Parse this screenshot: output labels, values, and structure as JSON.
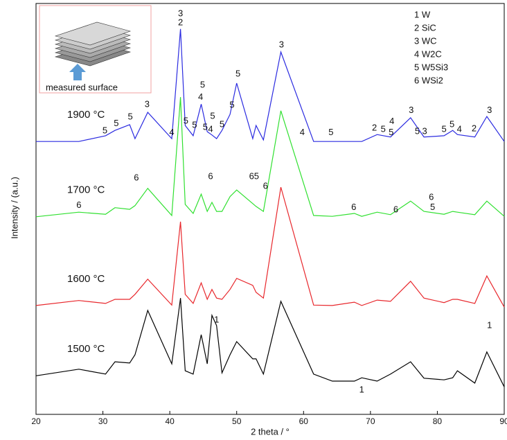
{
  "chart_data": {
    "type": "line",
    "x_label": "2 theta / °",
    "y_label": "Intensity / (a.u.)",
    "xlim": [
      20,
      90
    ],
    "xticks": [
      20,
      30,
      40,
      50,
      60,
      70,
      80,
      90
    ],
    "ylim": [
      0,
      100
    ],
    "x": [
      20,
      26.4,
      30.4,
      31.8,
      34.0,
      34.8,
      36.7,
      40.3,
      41.6,
      42.3,
      43.5,
      44.7,
      45.6,
      46.3,
      47.0,
      47.8,
      49.0,
      50.0,
      52.4,
      52.9,
      54.0,
      56.6,
      61.5,
      64.3,
      67.6,
      68.7,
      71.0,
      73.0,
      76.0,
      78.0,
      81.0,
      82.3,
      83.0,
      85.6,
      87.4,
      90
    ],
    "series": [
      {
        "name": "1500 °C",
        "color": "#000000",
        "values": [
          9.4,
          11,
          9.8,
          12.8,
          12.5,
          14.5,
          25.3,
          12.3,
          28.3,
          10.6,
          9.8,
          19.4,
          12.3,
          24.1,
          21.6,
          10.1,
          14.5,
          17.7,
          13.5,
          13.5,
          9.8,
          27.5,
          9.8,
          8.1,
          8.1,
          8.9,
          8.1,
          9.8,
          12.8,
          8.8,
          8.4,
          8.9,
          10.6,
          7.6,
          15.2,
          6.7
        ]
      },
      {
        "name": "1600 °C",
        "color": "#e8262b",
        "values": [
          26.5,
          27.7,
          27,
          28,
          28,
          29.2,
          32.9,
          26.6,
          46.9,
          29.2,
          27,
          32,
          28,
          30.4,
          28.3,
          28,
          30.4,
          33.1,
          31.4,
          29.7,
          28.3,
          55.3,
          26.6,
          26.5,
          27.3,
          26.5,
          27.8,
          27.5,
          32.4,
          28.3,
          27.2,
          28,
          28,
          27,
          33.7,
          26.1
        ]
      },
      {
        "name": "1700 °C",
        "color": "#2fe02f",
        "values": [
          48.1,
          49.2,
          48.7,
          50.3,
          49.9,
          50.8,
          55,
          48.4,
          77.2,
          51.1,
          48.9,
          53.6,
          49.4,
          51.6,
          49.4,
          49.4,
          53,
          54.6,
          51.3,
          50.6,
          49.4,
          73.9,
          48.4,
          48.2,
          48.9,
          48.2,
          49.2,
          48.6,
          51.9,
          49.4,
          48.7,
          49.4,
          49.2,
          48.6,
          51.9,
          48.2
        ]
      },
      {
        "name": "1900 °C",
        "color": "#2a2ae0",
        "values": [
          66.4,
          66.4,
          67.8,
          69.1,
          70.5,
          67.1,
          73.5,
          67.1,
          93.8,
          70.3,
          67.8,
          75.5,
          68.8,
          68,
          67.1,
          69.1,
          73,
          80.6,
          67.1,
          70.3,
          66.8,
          88.2,
          66.4,
          66.4,
          66.4,
          66.4,
          68.1,
          67.5,
          72.2,
          67.5,
          67.8,
          69.1,
          68.1,
          67.5,
          72.5,
          66.4
        ]
      }
    ],
    "annotations": [
      {
        "text": "3",
        "x": 41.6,
        "y": 97.5
      },
      {
        "text": "2",
        "x": 41.6,
        "y": 95.3
      },
      {
        "text": "5",
        "x": 30.3,
        "y": 69
      },
      {
        "text": "5",
        "x": 32.0,
        "y": 70.7
      },
      {
        "text": "5",
        "x": 34.1,
        "y": 72.3
      },
      {
        "text": "3",
        "x": 36.6,
        "y": 75.4
      },
      {
        "text": "4",
        "x": 40.3,
        "y": 68.5
      },
      {
        "text": "5",
        "x": 42.4,
        "y": 71.3
      },
      {
        "text": "5",
        "x": 43.7,
        "y": 70.3
      },
      {
        "text": "5",
        "x": 45.3,
        "y": 69.8
      },
      {
        "text": "4",
        "x": 46.1,
        "y": 69.3
      },
      {
        "text": "5",
        "x": 46.4,
        "y": 72.5
      },
      {
        "text": "4",
        "x": 44.6,
        "y": 77.1
      },
      {
        "text": "5",
        "x": 44.9,
        "y": 80.1
      },
      {
        "text": "5",
        "x": 47.8,
        "y": 70.5
      },
      {
        "text": "5",
        "x": 49.3,
        "y": 75.2
      },
      {
        "text": "5",
        "x": 50.2,
        "y": 82.8
      },
      {
        "text": "3",
        "x": 56.7,
        "y": 89.9
      },
      {
        "text": "4",
        "x": 59.8,
        "y": 68.5
      },
      {
        "text": "5",
        "x": 64.1,
        "y": 68.5
      },
      {
        "text": "2",
        "x": 70.6,
        "y": 69.6
      },
      {
        "text": "5",
        "x": 71.9,
        "y": 69.3
      },
      {
        "text": "4",
        "x": 73.2,
        "y": 71.2
      },
      {
        "text": "5",
        "x": 73.1,
        "y": 68.5
      },
      {
        "text": "3",
        "x": 76.1,
        "y": 73.9
      },
      {
        "text": "5",
        "x": 77.0,
        "y": 68.8
      },
      {
        "text": "3",
        "x": 78.1,
        "y": 68.8
      },
      {
        "text": "5",
        "x": 81.0,
        "y": 69.3
      },
      {
        "text": "5",
        "x": 82.2,
        "y": 70.5
      },
      {
        "text": "4",
        "x": 83.3,
        "y": 69.3
      },
      {
        "text": "2",
        "x": 85.5,
        "y": 69.5
      },
      {
        "text": "3",
        "x": 87.8,
        "y": 73.9
      },
      {
        "text": "6",
        "x": 26.4,
        "y": 50.8
      },
      {
        "text": "6",
        "x": 35.0,
        "y": 57.5
      },
      {
        "text": "6",
        "x": 46.1,
        "y": 57.8
      },
      {
        "text": "65",
        "x": 52.6,
        "y": 57.8
      },
      {
        "text": "6",
        "x": 54.3,
        "y": 55.5
      },
      {
        "text": "6",
        "x": 67.5,
        "y": 50.3
      },
      {
        "text": "6",
        "x": 73.8,
        "y": 49.7
      },
      {
        "text": "6",
        "x": 79.1,
        "y": 52.8
      },
      {
        "text": "5",
        "x": 79.3,
        "y": 50.3
      },
      {
        "text": "1",
        "x": 47.0,
        "y": 22.9
      },
      {
        "text": "1",
        "x": 68.7,
        "y": 5.9
      },
      {
        "text": "1",
        "x": 87.8,
        "y": 21.6
      }
    ],
    "phase_legend": [
      "1 W",
      "2 SiC",
      "3 WC",
      "4 W2C",
      "5 W5Si3",
      "6 WSi2"
    ],
    "inset_caption": "measured surface"
  }
}
